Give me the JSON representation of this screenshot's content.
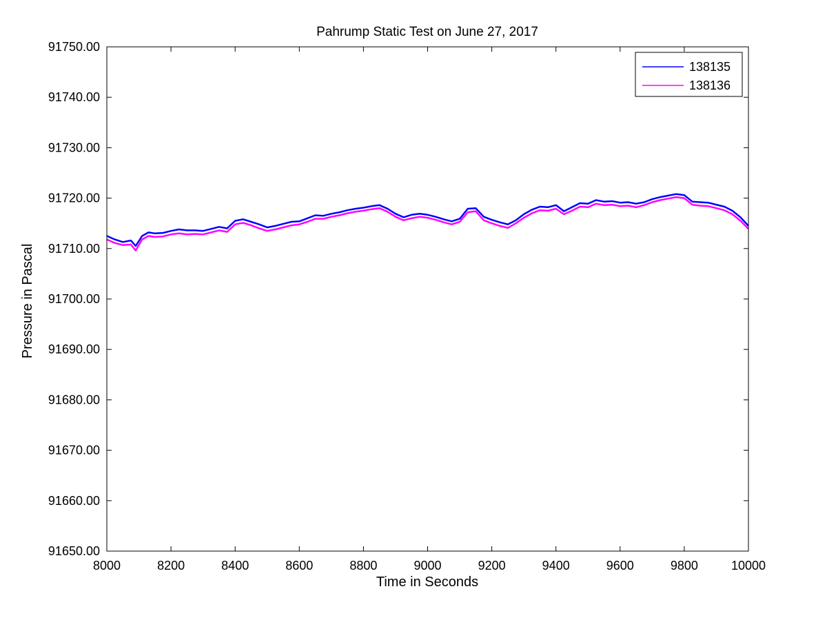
{
  "chart_data": {
    "type": "line",
    "title": "Pahrump Static Test on June 27, 2017",
    "xlabel": "Time in Seconds",
    "ylabel": "Pressure in Pascal",
    "xlim": [
      8000,
      10000
    ],
    "ylim": [
      91650,
      91750
    ],
    "xticks": [
      8000,
      8200,
      8400,
      8600,
      8800,
      9000,
      9200,
      9400,
      9600,
      9800,
      10000
    ],
    "yticks": [
      91650,
      91660,
      91670,
      91680,
      91690,
      91700,
      91710,
      91720,
      91730,
      91740,
      91750
    ],
    "ytick_labels": [
      "91650.00",
      "91660.00",
      "91670.00",
      "91680.00",
      "91690.00",
      "91700.00",
      "91710.00",
      "91720.00",
      "91730.00",
      "91740.00",
      "91750.00"
    ],
    "grid": false,
    "legend_position": "top-right",
    "series": [
      {
        "name": "138135",
        "color": "#0000ff",
        "x": [
          8000,
          8025,
          8050,
          8075,
          8090,
          8110,
          8130,
          8150,
          8175,
          8200,
          8225,
          8250,
          8275,
          8300,
          8325,
          8350,
          8375,
          8400,
          8425,
          8450,
          8475,
          8500,
          8525,
          8550,
          8575,
          8600,
          8625,
          8650,
          8675,
          8700,
          8725,
          8750,
          8775,
          8800,
          8825,
          8850,
          8875,
          8900,
          8925,
          8950,
          8975,
          9000,
          9025,
          9050,
          9075,
          9100,
          9125,
          9150,
          9175,
          9200,
          9225,
          9250,
          9275,
          9300,
          9325,
          9350,
          9375,
          9400,
          9425,
          9450,
          9475,
          9500,
          9525,
          9550,
          9575,
          9600,
          9625,
          9650,
          9675,
          9700,
          9725,
          9750,
          9775,
          9800,
          9825,
          9850,
          9875,
          9900,
          9925,
          9950,
          9975,
          10000
        ],
        "values": [
          91712.5,
          91711.8,
          91711.3,
          91711.6,
          91710.5,
          91712.5,
          91713.2,
          91713.0,
          91713.1,
          91713.5,
          91713.8,
          91713.6,
          91713.6,
          91713.5,
          91713.9,
          91714.3,
          91714.0,
          91715.5,
          91715.8,
          91715.3,
          91714.8,
          91714.2,
          91714.5,
          91714.9,
          91715.3,
          91715.4,
          91716.0,
          91716.6,
          91716.5,
          91716.9,
          91717.2,
          91717.6,
          91717.9,
          91718.1,
          91718.4,
          91718.6,
          91717.9,
          91716.9,
          91716.2,
          91716.7,
          91716.9,
          91716.7,
          91716.3,
          91715.8,
          91715.4,
          91715.9,
          91717.9,
          91718.0,
          91716.3,
          91715.7,
          91715.2,
          91714.8,
          91715.6,
          91716.8,
          91717.7,
          91718.3,
          91718.2,
          91718.6,
          91717.4,
          91718.2,
          91719.0,
          91718.9,
          91719.6,
          91719.3,
          91719.4,
          91719.1,
          91719.2,
          91718.9,
          91719.2,
          91719.8,
          91720.2,
          91720.5,
          91720.8,
          91720.6,
          91719.3,
          91719.2,
          91719.1,
          91718.7,
          91718.3,
          91717.5,
          91716.2,
          91714.5
        ]
      },
      {
        "name": "138136",
        "color": "#ff00ff",
        "x": [
          8000,
          8025,
          8050,
          8075,
          8090,
          8110,
          8130,
          8150,
          8175,
          8200,
          8225,
          8250,
          8275,
          8300,
          8325,
          8350,
          8375,
          8400,
          8425,
          8450,
          8475,
          8500,
          8525,
          8550,
          8575,
          8600,
          8625,
          8650,
          8675,
          8700,
          8725,
          8750,
          8775,
          8800,
          8825,
          8850,
          8875,
          8900,
          8925,
          8950,
          8975,
          9000,
          9025,
          9050,
          9075,
          9100,
          9125,
          9150,
          9175,
          9200,
          9225,
          9250,
          9275,
          9300,
          9325,
          9350,
          9375,
          9400,
          9425,
          9450,
          9475,
          9500,
          9525,
          9550,
          9575,
          9600,
          9625,
          9650,
          9675,
          9700,
          9725,
          9750,
          9775,
          9800,
          9825,
          9850,
          9875,
          9900,
          9925,
          9950,
          9975,
          10000
        ],
        "values": [
          91711.8,
          91711.1,
          91710.7,
          91710.8,
          91709.6,
          91711.8,
          91712.5,
          91712.3,
          91712.4,
          91712.8,
          91713.0,
          91712.8,
          91712.9,
          91712.8,
          91713.2,
          91713.6,
          91713.3,
          91714.8,
          91715.1,
          91714.6,
          91714.0,
          91713.5,
          91713.8,
          91714.2,
          91714.6,
          91714.8,
          91715.3,
          91715.9,
          91715.9,
          91716.3,
          91716.6,
          91717.0,
          91717.3,
          91717.5,
          91717.8,
          91718.0,
          91717.3,
          91716.3,
          91715.6,
          91716.0,
          91716.3,
          91716.1,
          91715.7,
          91715.2,
          91714.8,
          91715.3,
          91717.2,
          91717.4,
          91715.6,
          91715.0,
          91714.5,
          91714.1,
          91715.0,
          91716.1,
          91717.0,
          91717.6,
          91717.5,
          91717.9,
          91716.8,
          91717.5,
          91718.3,
          91718.2,
          91718.9,
          91718.6,
          91718.7,
          91718.4,
          91718.5,
          91718.2,
          91718.6,
          91719.2,
          91719.6,
          91719.9,
          91720.2,
          91720.0,
          91718.7,
          91718.5,
          91718.4,
          91718.0,
          91717.6,
          91716.8,
          91715.5,
          91713.9
        ]
      }
    ]
  }
}
